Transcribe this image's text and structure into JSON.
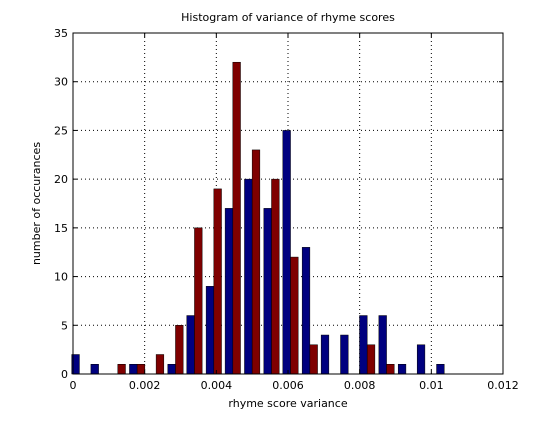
{
  "chart_data": {
    "type": "bar",
    "title": "Histogram of variance of rhyme scores",
    "xlabel": "rhyme score variance",
    "ylabel": "number of occurances",
    "xlim": [
      0,
      0.012
    ],
    "ylim": [
      0,
      35
    ],
    "x_ticks": [
      0,
      0.002,
      0.004,
      0.006,
      0.008,
      0.01,
      0.012
    ],
    "x_tick_labels": [
      "0",
      "0.002",
      "0.004",
      "0.006",
      "0.008",
      "0.01",
      "0.012"
    ],
    "y_ticks": [
      0,
      5,
      10,
      15,
      20,
      25,
      30,
      35
    ],
    "y_tick_labels": [
      "0",
      "5",
      "10",
      "15",
      "20",
      "25",
      "30",
      "35"
    ],
    "grid": true,
    "legend": "none",
    "bin_centers": [
      0.000179,
      0.000714,
      0.00125,
      0.00179,
      0.00232,
      0.00286,
      0.00339,
      0.00393,
      0.00446,
      0.005,
      0.00554,
      0.00607,
      0.00661,
      0.00714,
      0.00768,
      0.00821,
      0.00875,
      0.00929,
      0.00982,
      0.01036,
      0.01089
    ],
    "series": [
      {
        "color": "#00007f",
        "values": [
          2,
          1,
          0,
          1,
          0,
          1,
          6,
          9,
          17,
          20,
          17,
          25,
          13,
          4,
          4,
          6,
          6,
          1,
          3,
          1,
          0
        ]
      },
      {
        "color": "#7f0000",
        "values": [
          0,
          0,
          1,
          1,
          2,
          5,
          15,
          19,
          32,
          23,
          20,
          12,
          3,
          0,
          0,
          3,
          1,
          0,
          0,
          0,
          0
        ]
      }
    ]
  }
}
